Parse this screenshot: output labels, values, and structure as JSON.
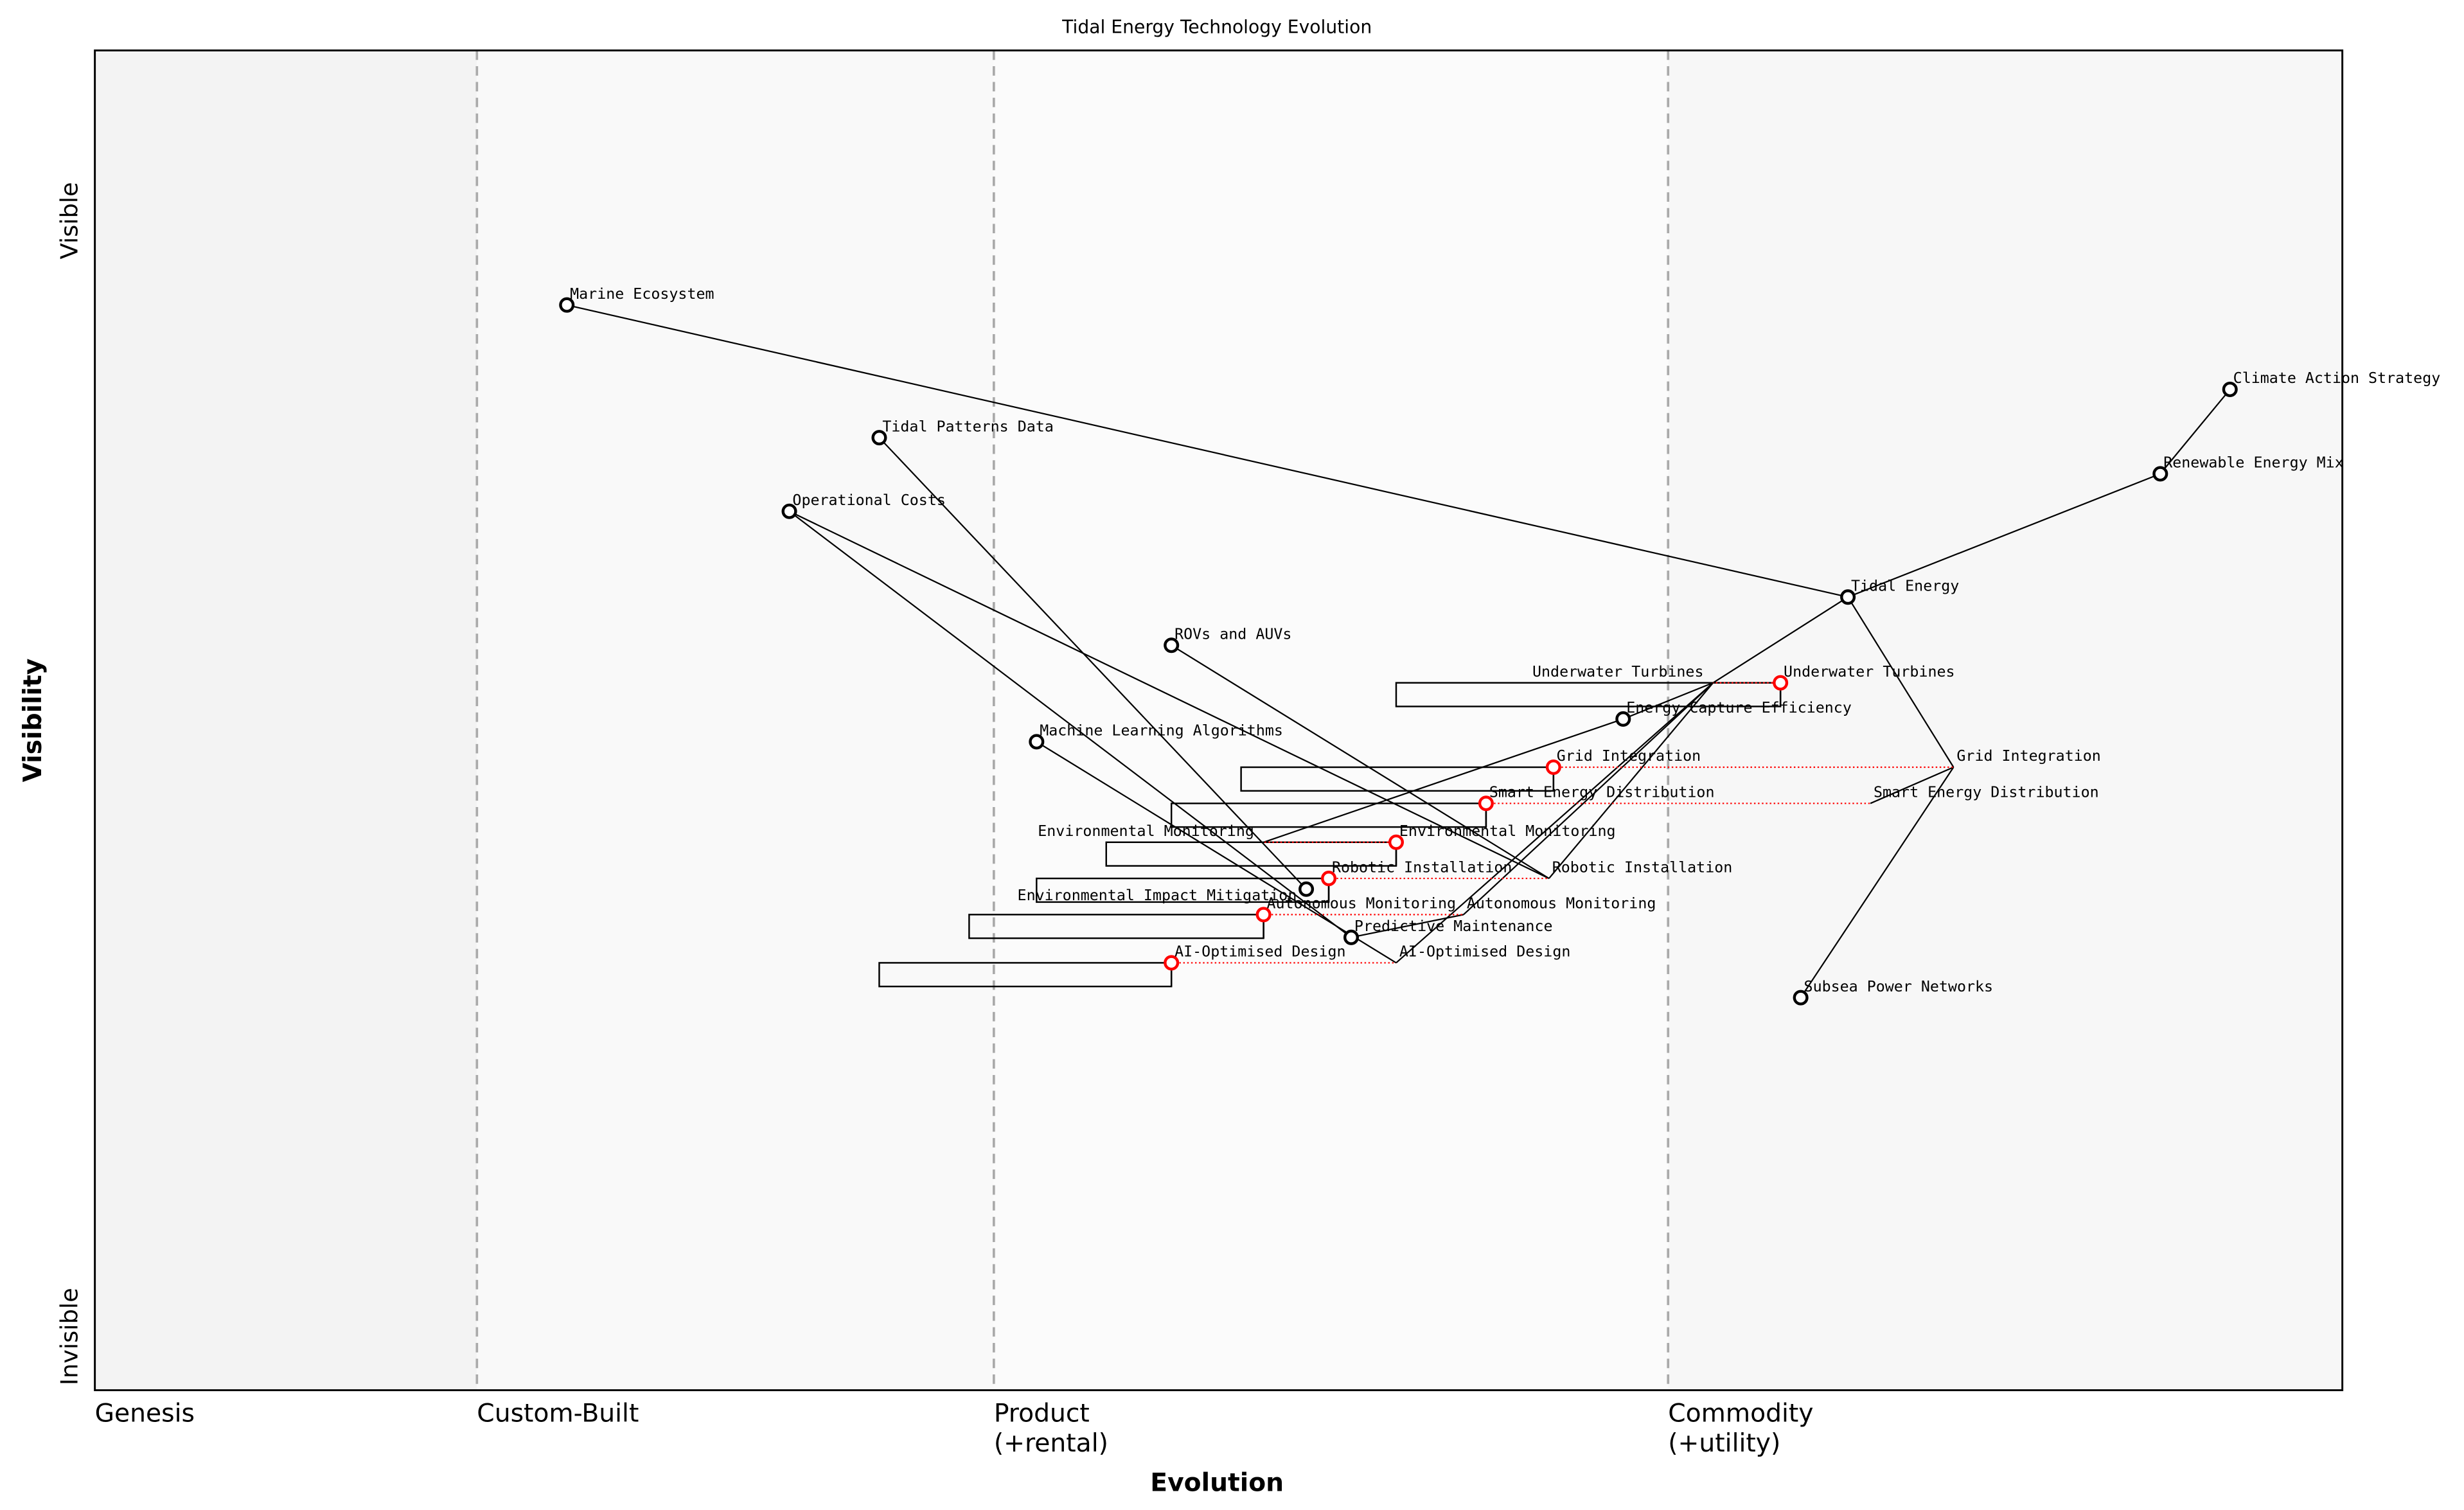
{
  "title": "Tidal Energy Technology Evolution",
  "xlabel": "Evolution",
  "ylabel": "Visibility",
  "y_top_label": "Visible",
  "y_bottom_label": "Invisible",
  "stages": [
    {
      "label": "Genesis",
      "start": 0.0
    },
    {
      "label": "Custom-Built",
      "start": 0.17
    },
    {
      "label": "Product",
      "sub": "(+rental)",
      "start": 0.4
    },
    {
      "label": "Commodity",
      "sub": "(+utility)",
      "start": 0.7
    }
  ],
  "colors": {
    "node": "#000000",
    "evolving": "#ff0000",
    "stage_line": "#aaaaaa"
  },
  "components": [
    {
      "id": "marine",
      "name": "Marine Ecosystem",
      "evolution": 0.21,
      "visibility": 0.81
    },
    {
      "id": "tidalpat",
      "name": "Tidal Patterns Data",
      "evolution": 0.349,
      "visibility": 0.711
    },
    {
      "id": "opcost",
      "name": "Operational Costs",
      "evolution": 0.309,
      "visibility": 0.656
    },
    {
      "id": "rov",
      "name": "ROVs and AUVs",
      "evolution": 0.479,
      "visibility": 0.556
    },
    {
      "id": "ml",
      "name": "Machine Learning Algorithms",
      "evolution": 0.419,
      "visibility": 0.484
    },
    {
      "id": "climate",
      "name": "Climate Action Strategy",
      "evolution": 0.95,
      "visibility": 0.747
    },
    {
      "id": "renew",
      "name": "Renewable Energy Mix",
      "evolution": 0.919,
      "visibility": 0.684
    },
    {
      "id": "tidal",
      "name": "Tidal Energy",
      "evolution": 0.78,
      "visibility": 0.592
    },
    {
      "id": "ece",
      "name": "Energy Capture Efficiency",
      "evolution": 0.68,
      "visibility": 0.501
    },
    {
      "id": "eim",
      "name": "Environmental Impact Mitigation",
      "evolution": 0.539,
      "visibility": 0.374
    },
    {
      "id": "pm",
      "name": "Predictive Maintenance",
      "evolution": 0.559,
      "visibility": 0.338
    },
    {
      "id": "subsea",
      "name": "Subsea Power Networks",
      "evolution": 0.759,
      "visibility": 0.293
    }
  ],
  "evolving": [
    {
      "id": "ut",
      "name": "Underwater Turbines",
      "evolution": 0.75,
      "visibility": 0.528,
      "evolves_to": 0.72,
      "pipeline_start": 0.579
    },
    {
      "id": "gi",
      "name": "Grid Integration",
      "evolution": 0.649,
      "visibility": 0.465,
      "evolves_to": 0.827,
      "pipeline_start": 0.51
    },
    {
      "id": "sed",
      "name": "Smart Energy Distribution",
      "evolution": 0.619,
      "visibility": 0.438,
      "evolves_to": 0.79,
      "pipeline_start": 0.479
    },
    {
      "id": "em",
      "name": "Environmental Monitoring",
      "evolution": 0.579,
      "visibility": 0.409,
      "evolves_to": 0.52,
      "pipeline_start": 0.45
    },
    {
      "id": "ri",
      "name": "Robotic Installation",
      "evolution": 0.549,
      "visibility": 0.382,
      "evolves_to": 0.647,
      "pipeline_start": 0.419
    },
    {
      "id": "am",
      "name": "Autonomous Monitoring",
      "evolution": 0.52,
      "visibility": 0.355,
      "evolves_to": 0.609,
      "pipeline_start": 0.389
    },
    {
      "id": "ai",
      "name": "AI-Optimised Design",
      "evolution": 0.479,
      "visibility": 0.319,
      "evolves_to": 0.579,
      "pipeline_start": 0.349
    }
  ],
  "links": [
    [
      "marine",
      "tidal"
    ],
    [
      "tidal",
      "renew"
    ],
    [
      "renew",
      "climate"
    ],
    [
      "tidal",
      "ut*"
    ],
    [
      "tidal",
      "gi*"
    ],
    [
      "gi*",
      "sed*"
    ],
    [
      "gi*",
      "subsea"
    ],
    [
      "ut*",
      "ece"
    ],
    [
      "ut*",
      "am*"
    ],
    [
      "ut*",
      "ai*"
    ],
    [
      "ut*",
      "ri*"
    ],
    [
      "ece",
      "em*"
    ],
    [
      "pm",
      "am*"
    ],
    [
      "ml",
      "ai*"
    ],
    [
      "opcost",
      "pm"
    ],
    [
      "opcost",
      "ri*"
    ],
    [
      "tidalpat",
      "eim"
    ],
    [
      "rov",
      "ri*"
    ]
  ]
}
